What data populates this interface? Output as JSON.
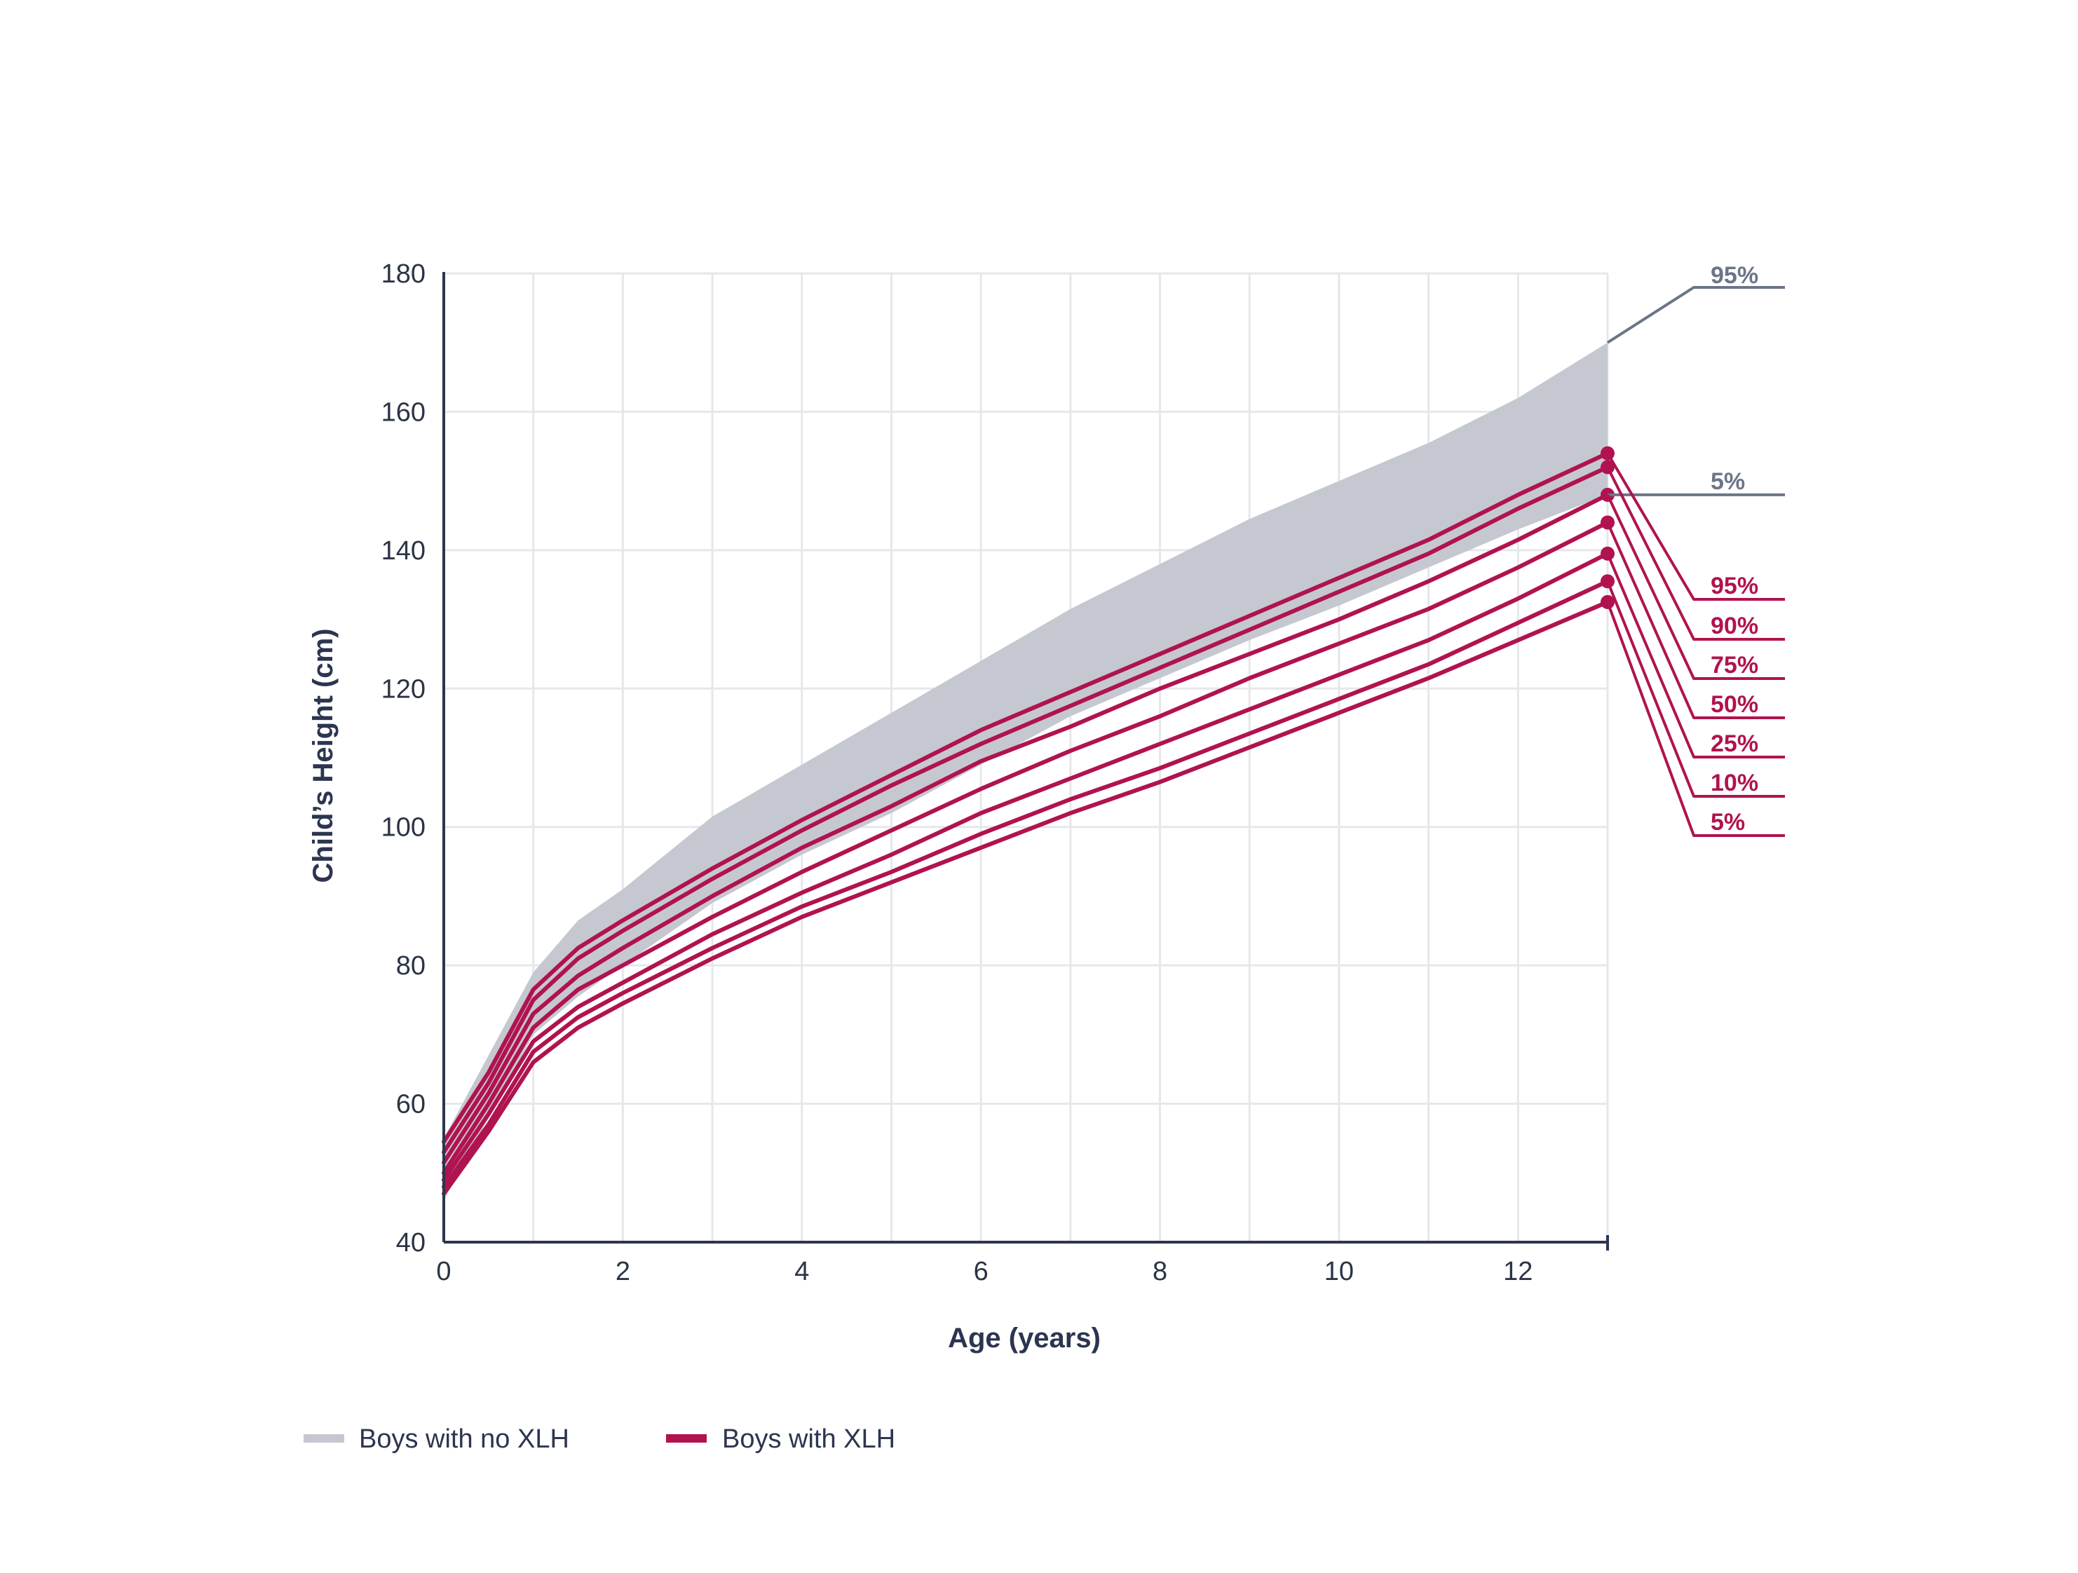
{
  "chart_data": {
    "type": "line",
    "xlabel": "Age (years)",
    "ylabel": "Child’s Height (cm)",
    "xlim": [
      0,
      13
    ],
    "ylim": [
      40,
      180
    ],
    "xticks": [
      0,
      2,
      4,
      6,
      8,
      10,
      12
    ],
    "yticks": [
      40,
      60,
      80,
      100,
      120,
      140,
      160,
      180
    ],
    "grid": "on",
    "legend_position": "bottom-left",
    "colors": {
      "no_xlh": "#c5c8d0",
      "xlh": "#b0134f",
      "gray_text": "#6b7587",
      "axis": "#2c3550"
    },
    "reference_band": {
      "name": "Boys with no XLH",
      "upper_label": "95%",
      "lower_label": "5%",
      "x": [
        0,
        1,
        1.5,
        2,
        3,
        4,
        5,
        6,
        7,
        8,
        9,
        10,
        11,
        12,
        13
      ],
      "upper": [
        55,
        79,
        86.5,
        91,
        101.5,
        109,
        116.5,
        124,
        131.5,
        138,
        144.5,
        150,
        155.5,
        162,
        170
      ],
      "lower": [
        46,
        70,
        75.5,
        80,
        89,
        96,
        102,
        109,
        116,
        121.5,
        127,
        132,
        137.5,
        143,
        148
      ]
    },
    "series": [
      {
        "name": "Boys with XLH",
        "label": "95%",
        "x": [
          0,
          0.5,
          1,
          1.5,
          2,
          3,
          4,
          5,
          6,
          7,
          8,
          9,
          10,
          11,
          12,
          13
        ],
        "values": [
          54.5,
          64.5,
          76.5,
          82.5,
          86.5,
          94,
          101,
          107.5,
          114,
          119.5,
          125,
          130.5,
          136,
          141.5,
          148,
          154
        ]
      },
      {
        "name": "Boys with XLH",
        "label": "90%",
        "x": [
          0,
          0.5,
          1,
          1.5,
          2,
          3,
          4,
          5,
          6,
          7,
          8,
          9,
          10,
          11,
          12,
          13
        ],
        "values": [
          53,
          63,
          75,
          81,
          85,
          92.5,
          99.5,
          106,
          112,
          117.5,
          123,
          128.5,
          134,
          139.5,
          146,
          152
        ]
      },
      {
        "name": "Boys with XLH",
        "label": "75%",
        "x": [
          0,
          0.5,
          1,
          1.5,
          2,
          3,
          4,
          5,
          6,
          7,
          8,
          9,
          10,
          11,
          12,
          13
        ],
        "values": [
          51.5,
          61.5,
          73,
          78.5,
          82.5,
          90,
          97,
          103,
          109.5,
          114.5,
          120,
          125,
          130,
          135.5,
          141.5,
          148
        ]
      },
      {
        "name": "Boys with XLH",
        "label": "50%",
        "x": [
          0,
          0.5,
          1,
          1.5,
          2,
          3,
          4,
          5,
          6,
          7,
          8,
          9,
          10,
          11,
          12,
          13
        ],
        "values": [
          50,
          60,
          71,
          76.5,
          80,
          87,
          93.5,
          99.5,
          105.5,
          111,
          116,
          121.5,
          126.5,
          131.5,
          137.5,
          144
        ]
      },
      {
        "name": "Boys with XLH",
        "label": "25%",
        "x": [
          0,
          0.5,
          1,
          1.5,
          2,
          3,
          4,
          5,
          6,
          7,
          8,
          9,
          10,
          11,
          12,
          13
        ],
        "values": [
          49,
          58.5,
          69,
          74,
          77.5,
          84.5,
          90.5,
          96,
          102,
          107,
          112,
          117,
          122,
          127,
          133,
          139.5
        ]
      },
      {
        "name": "Boys with XLH",
        "label": "10%",
        "x": [
          0,
          0.5,
          1,
          1.5,
          2,
          3,
          4,
          5,
          6,
          7,
          8,
          9,
          10,
          11,
          12,
          13
        ],
        "values": [
          48,
          57,
          67.5,
          72.5,
          76,
          82.5,
          88.5,
          93.5,
          99,
          104,
          108.5,
          113.5,
          118.5,
          123.5,
          129.5,
          135.5
        ]
      },
      {
        "name": "Boys with XLH",
        "label": "5%",
        "x": [
          0,
          0.5,
          1,
          1.5,
          2,
          3,
          4,
          5,
          6,
          7,
          8,
          9,
          10,
          11,
          12,
          13
        ],
        "values": [
          47,
          56,
          66,
          71,
          74.5,
          81,
          87,
          92,
          97,
          102,
          106.5,
          111.5,
          116.5,
          121.5,
          127,
          132.5
        ]
      }
    ]
  },
  "legend": {
    "items": [
      {
        "label": "Boys with no XLH",
        "color": "#c5c8d0"
      },
      {
        "label": "Boys with XLH",
        "color": "#b0134f"
      }
    ]
  }
}
